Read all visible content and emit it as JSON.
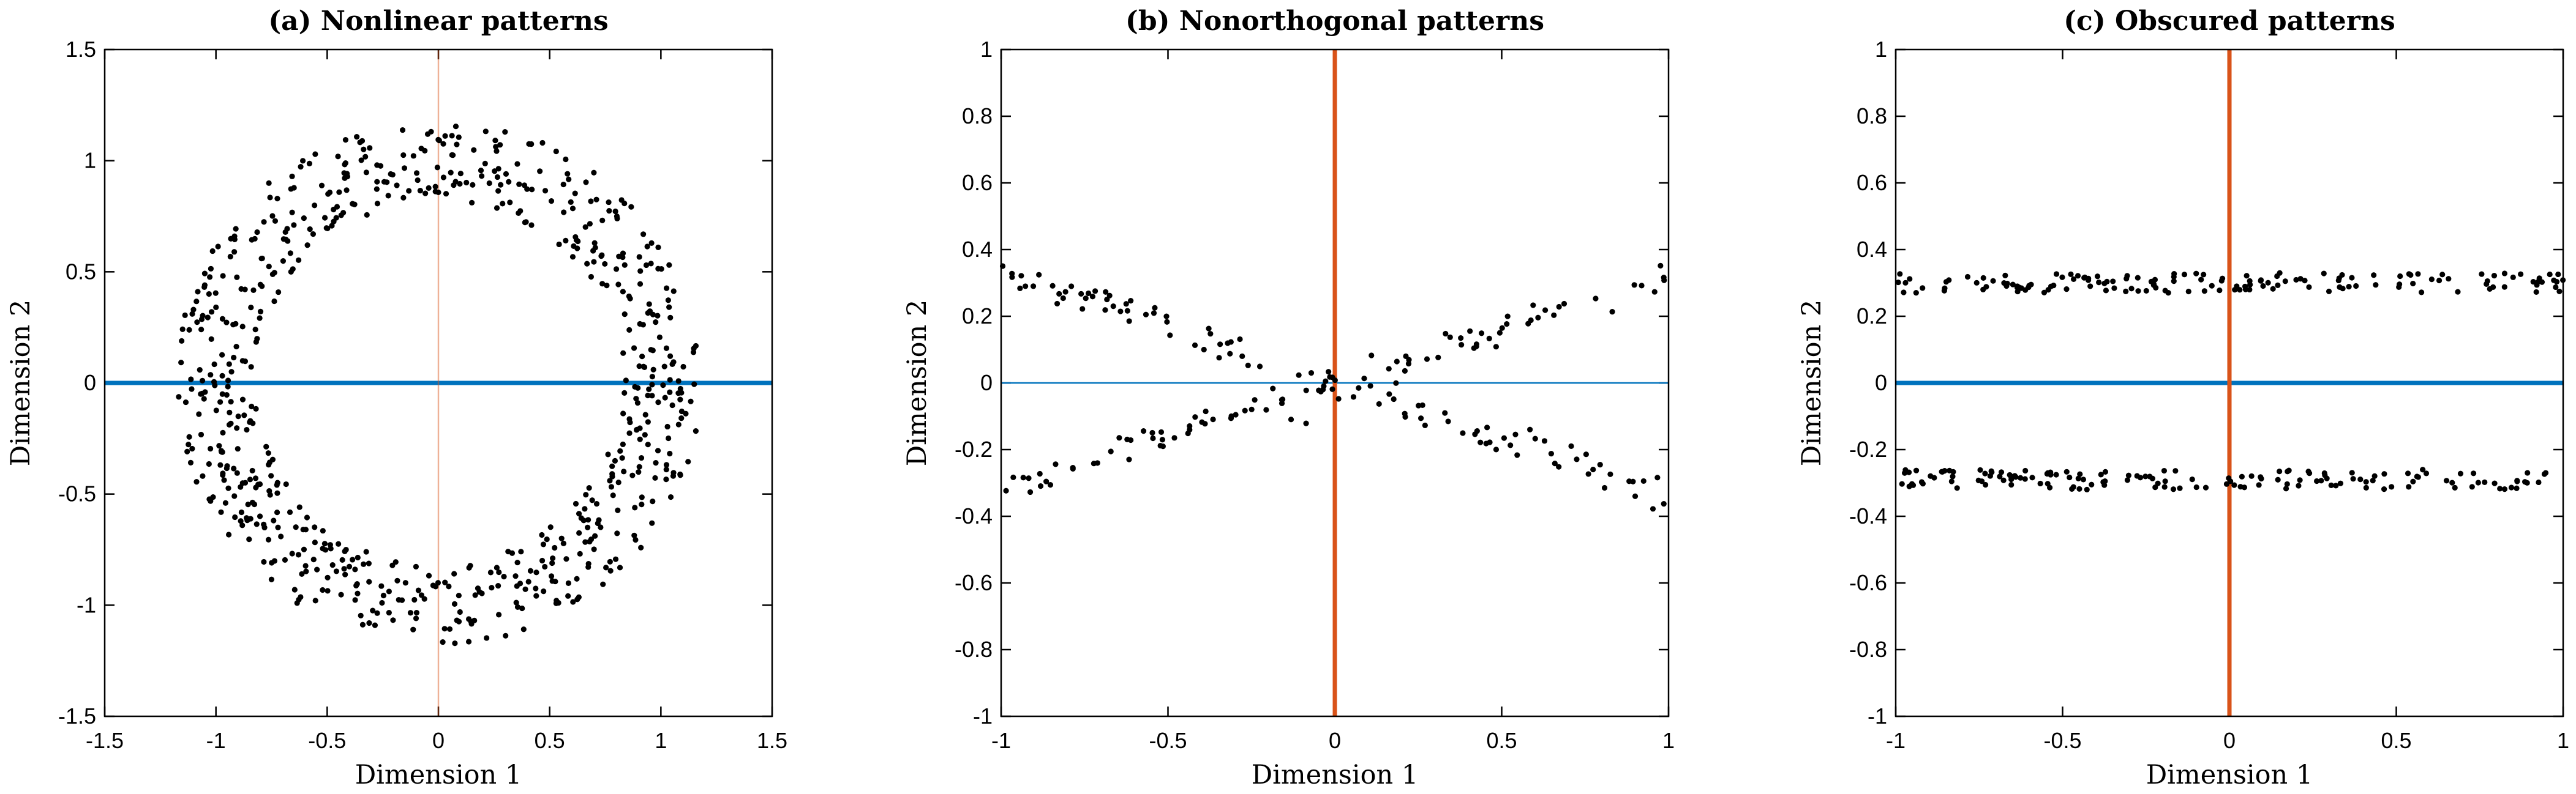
{
  "colors": {
    "blue": "#0072bd",
    "orange": "#d95319",
    "points": "#000000"
  },
  "chart_data": [
    {
      "type": "scatter",
      "title": "(a) Nonlinear patterns",
      "xlabel": "Dimension 1",
      "ylabel": "Dimension 2",
      "xlim": [
        -1.5,
        1.5
      ],
      "ylim": [
        -1.5,
        1.5
      ],
      "xticks": [
        -1.5,
        -1,
        -0.5,
        0,
        0.5,
        1,
        1.5
      ],
      "yticks": [
        -1.5,
        -1,
        -0.5,
        0,
        0.5,
        1,
        1.5
      ],
      "xtick_labels": [
        "-1.5",
        "-1",
        "-0.5",
        "0",
        "0.5",
        "1",
        "1.5"
      ],
      "ytick_labels": [
        "-1.5",
        "-1",
        "-0.5",
        "0",
        "0.5",
        "1",
        "1.5"
      ],
      "lines": [
        {
          "orientation": "horizontal",
          "value": 0,
          "color": "blue",
          "weight": "thick"
        },
        {
          "orientation": "vertical",
          "value": 0,
          "color": "orange",
          "weight": "faint"
        }
      ],
      "series": [
        {
          "name": "points",
          "shape": "annulus",
          "count": 700,
          "r_inner": 0.82,
          "r_outer": 1.18,
          "center": [
            0,
            0
          ]
        }
      ]
    },
    {
      "type": "scatter",
      "title": "(b) Nonorthogonal patterns",
      "xlabel": "Dimension 1",
      "ylabel": "Dimension 2",
      "xlim": [
        -1,
        1
      ],
      "ylim": [
        -1,
        1
      ],
      "xticks": [
        -1,
        -0.5,
        0,
        0.5,
        1
      ],
      "yticks": [
        -1,
        -0.8,
        -0.6,
        -0.4,
        -0.2,
        0,
        0.2,
        0.4,
        0.6,
        0.8,
        1
      ],
      "xtick_labels": [
        "-1",
        "-0.5",
        "0",
        "0.5",
        "1"
      ],
      "ytick_labels": [
        "-1",
        "-0.8",
        "-0.6",
        "-0.4",
        "-0.2",
        "0",
        "0.2",
        "0.4",
        "0.6",
        "0.8",
        "1"
      ],
      "lines": [
        {
          "orientation": "horizontal",
          "value": 0,
          "color": "blue",
          "weight": "thin"
        },
        {
          "orientation": "vertical",
          "value": 0,
          "color": "orange",
          "weight": "thick"
        }
      ],
      "series": [
        {
          "name": "line-1",
          "shape": "line",
          "count": 100,
          "slope": -0.34,
          "intercept": 0,
          "x_range": [
            -1,
            1
          ],
          "noise": 0.025
        },
        {
          "name": "line-2",
          "shape": "line",
          "count": 100,
          "slope": 0.32,
          "intercept": 0,
          "x_range": [
            -1,
            1
          ],
          "noise": 0.025
        }
      ]
    },
    {
      "type": "scatter",
      "title": "(c) Obscured patterns",
      "xlabel": "Dimension 1",
      "ylabel": "Dimension 2",
      "xlim": [
        -1,
        1
      ],
      "ylim": [
        -1,
        1
      ],
      "xticks": [
        -1,
        -0.5,
        0,
        0.5,
        1
      ],
      "yticks": [
        -1,
        -0.8,
        -0.6,
        -0.4,
        -0.2,
        0,
        0.2,
        0.4,
        0.6,
        0.8,
        1
      ],
      "xtick_labels": [
        "-1",
        "-0.5",
        "0",
        "0.5",
        "1"
      ],
      "ytick_labels": [
        "-1",
        "-0.8",
        "-0.6",
        "-0.4",
        "-0.2",
        "0",
        "0.2",
        "0.4",
        "0.6",
        "0.8",
        "1"
      ],
      "lines": [
        {
          "orientation": "horizontal",
          "value": 0,
          "color": "blue",
          "weight": "thick"
        },
        {
          "orientation": "vertical",
          "value": 0,
          "color": "orange",
          "weight": "thick"
        }
      ],
      "series": [
        {
          "name": "band-upper",
          "shape": "band",
          "count": 150,
          "y_center": 0.3,
          "y_spread": 0.03,
          "x_range": [
            -1,
            1
          ]
        },
        {
          "name": "band-lower",
          "shape": "band",
          "count": 150,
          "y_center": -0.29,
          "y_spread": 0.03,
          "x_range": [
            -1,
            1
          ]
        }
      ]
    }
  ]
}
